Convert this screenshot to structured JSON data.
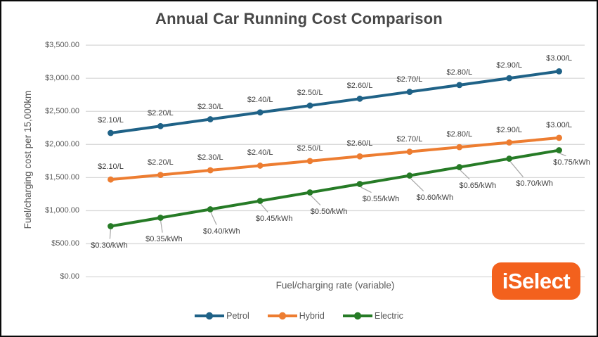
{
  "chart_data": {
    "type": "line",
    "title": "Annual Car Running Cost Comparison",
    "xlabel": "Fuel/charging rate (variable)",
    "ylabel": "Fuel/charging cost per 15,000km",
    "ylim": [
      0,
      3500
    ],
    "ytick_step": 500,
    "ytick_labels": [
      "$0.00",
      "$500.00",
      "$1,000.00",
      "$1,500.00",
      "$2,000.00",
      "$2,500.00",
      "$3,000.00",
      "$3,500.00"
    ],
    "grid": true,
    "legend_position": "bottom",
    "colors": {
      "gridline": "#D9D9D9",
      "leader_line": "#A6A6A6",
      "label_text": "#404040",
      "tick_text": "#595959"
    },
    "series": [
      {
        "name": "Petrol",
        "color": "#1F6287",
        "rates": [
          2.1,
          2.2,
          2.3,
          2.4,
          2.5,
          2.6,
          2.7,
          2.8,
          2.9,
          3.0
        ],
        "point_labels": [
          "$2.10/L",
          "$2.20/L",
          "$2.30/L",
          "$2.40/L",
          "$2.50/L",
          "$2.60/L",
          "$2.70/L",
          "$2.80/L",
          "$2.90/L",
          "$3.00/L"
        ],
        "values": [
          2173.5,
          2277,
          2380.5,
          2484,
          2587.5,
          2691,
          2794.5,
          2898,
          3001.5,
          3105
        ],
        "label_placement": "above"
      },
      {
        "name": "Hybrid",
        "color": "#ED7D31",
        "rates": [
          2.1,
          2.2,
          2.3,
          2.4,
          2.5,
          2.6,
          2.7,
          2.8,
          2.9,
          3.0
        ],
        "point_labels": [
          "$2.10/L",
          "$2.20/L",
          "$2.30/L",
          "$2.40/L",
          "$2.50/L",
          "$2.60/L",
          "$2.70/L",
          "$2.80/L",
          "$2.90/L",
          "$3.00/L"
        ],
        "values": [
          1470,
          1540,
          1610,
          1680,
          1750,
          1820,
          1890,
          1960,
          2030,
          2100
        ],
        "label_placement": "above"
      },
      {
        "name": "Electric",
        "color": "#267B26",
        "rates": [
          0.3,
          0.35,
          0.4,
          0.45,
          0.5,
          0.55,
          0.6,
          0.65,
          0.7,
          0.75
        ],
        "point_labels": [
          "$0.30/kWh",
          "$0.35/kWh",
          "$0.40/kWh",
          "$0.45/kWh",
          "$0.50/kWh",
          "$0.55/kWh",
          "$0.60/kWh",
          "$0.65/kWh",
          "$0.70/kWh",
          "$0.75/kWh"
        ],
        "values": [
          765,
          892.5,
          1020,
          1147.5,
          1275,
          1402.5,
          1530,
          1657.5,
          1785,
          1912.5
        ],
        "label_placement": "below-leader"
      }
    ]
  },
  "logo": {
    "text": "iSelect",
    "background": "#F3611D",
    "text_color": "#FFFFFF"
  }
}
